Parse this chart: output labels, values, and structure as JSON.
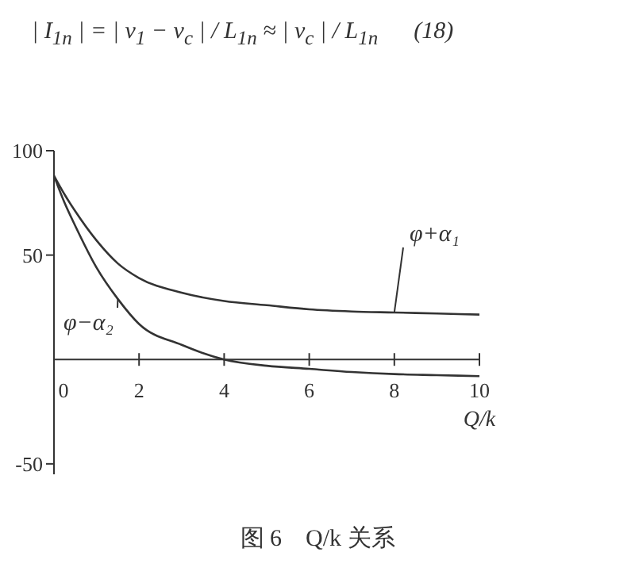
{
  "chart_data": {
    "type": "line",
    "title": "图 6    Q/k 关系",
    "annotations": [
      "| I$_{1n}$ | = | v$_{1}$ − v$_{c}$ | / L$_{1n}$ ≈ | v$_{c}$ | / L$_{1n}$      (18)"
    ],
    "xlabel": "Q/k",
    "x": [
      0,
      0.25,
      0.5,
      1,
      1.5,
      2,
      3,
      4,
      5,
      6,
      7,
      8,
      9,
      10
    ],
    "series": [
      {
        "name": "φ+α₁",
        "color": "#333333",
        "values": [
          88,
          79,
          71,
          57,
          46,
          39,
          32,
          28,
          26,
          24,
          23,
          22.5,
          22,
          21.5
        ]
      },
      {
        "name": "φ−α₂",
        "color": "#333333",
        "values": [
          88,
          75,
          64,
          44,
          29,
          17,
          7,
          0,
          -3,
          -4.5,
          -6,
          -7,
          -7.5,
          -8
        ]
      }
    ],
    "xlim": [
      0,
      10
    ],
    "xticks": [
      0,
      2,
      4,
      6,
      8,
      10
    ],
    "ylim": [
      -55,
      100
    ],
    "yticks": [
      -50,
      50,
      100
    ]
  }
}
